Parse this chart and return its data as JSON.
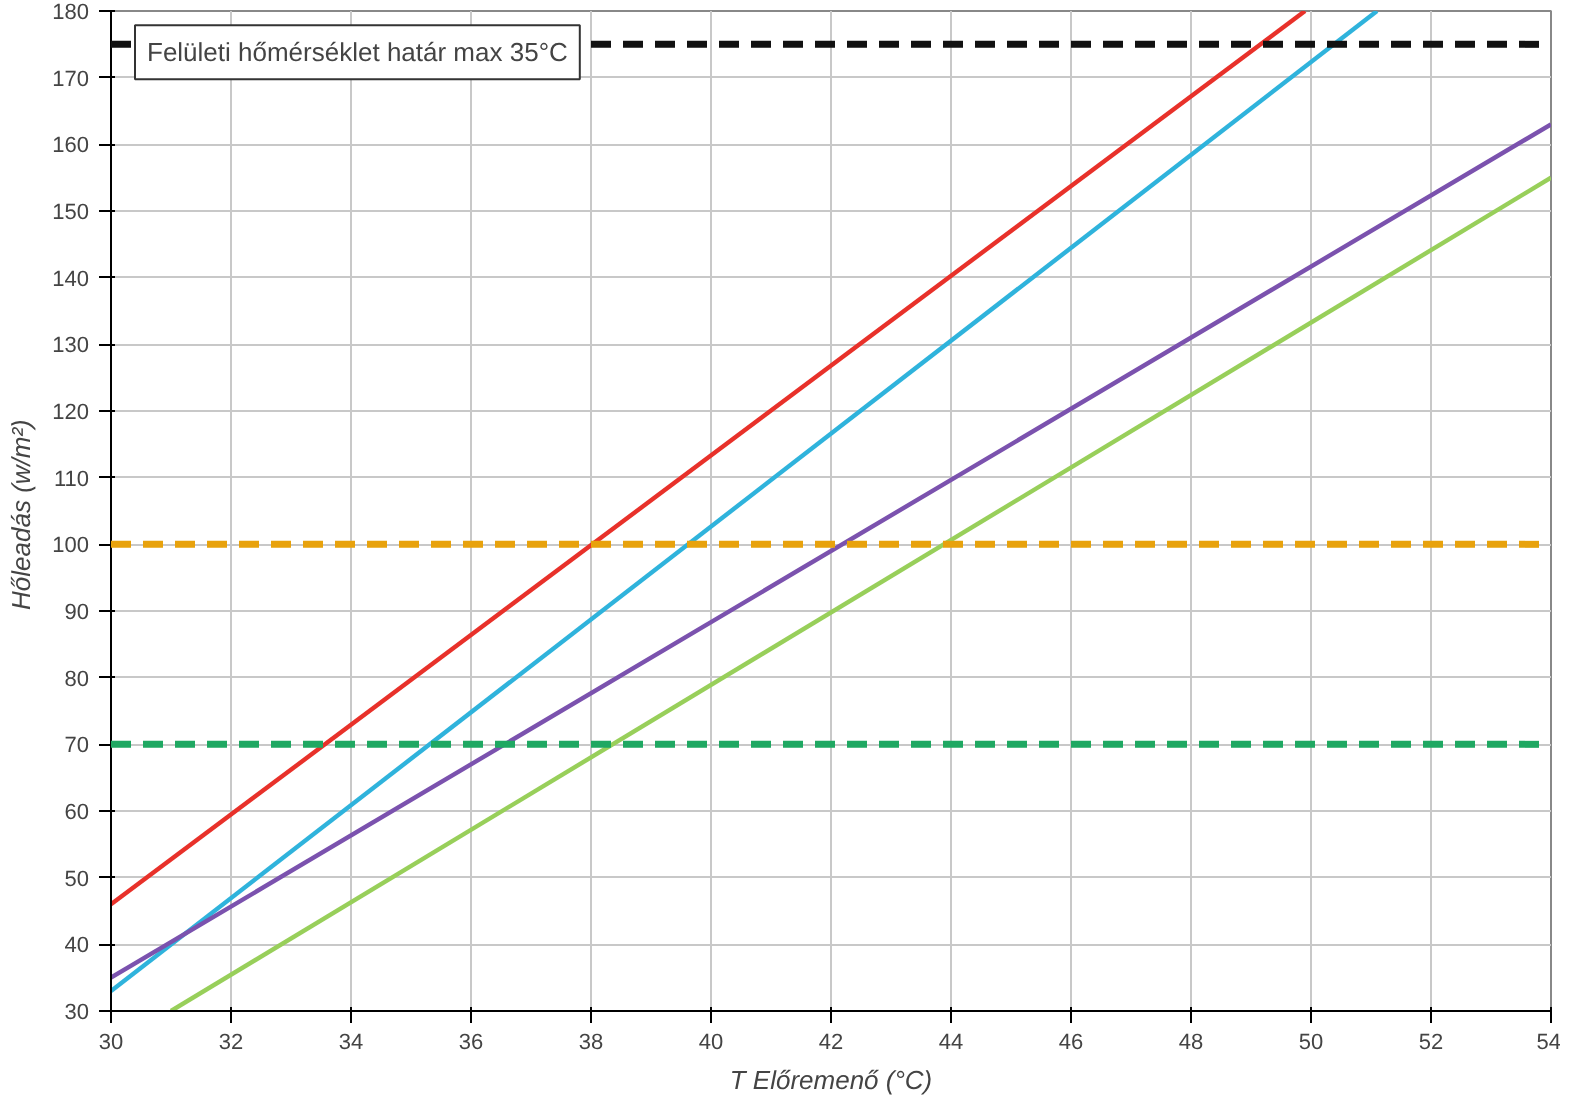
{
  "chart_data": {
    "type": "line",
    "xlabel": "T Előremenő (°C)",
    "ylabel": "Hőleadás  (w/m²)",
    "xlim": [
      30,
      54
    ],
    "ylim": [
      30,
      180
    ],
    "xticks": [
      30,
      32,
      34,
      36,
      38,
      40,
      42,
      44,
      46,
      48,
      50,
      52,
      54
    ],
    "yticks": [
      30,
      40,
      50,
      60,
      70,
      80,
      90,
      100,
      110,
      120,
      130,
      140,
      150,
      160,
      170,
      180
    ],
    "grid": true,
    "line_style": "solid",
    "marker": "none",
    "series": [
      {
        "color": "#e8312a",
        "x": [
          30,
          49.9
        ],
        "values": [
          46,
          180
        ]
      },
      {
        "color": "#2fb3dc",
        "x": [
          30,
          51.1
        ],
        "values": [
          33,
          180
        ]
      },
      {
        "color": "#7b52ae",
        "x": [
          30,
          54
        ],
        "values": [
          35,
          163
        ]
      },
      {
        "color": "#98cf5a",
        "x": [
          31,
          54
        ],
        "values": [
          30,
          155
        ]
      }
    ],
    "ref_lines": [
      {
        "axis": "y",
        "value": 175,
        "label": "Felületi hőmérséklet határ max 35°C",
        "color": "#111111",
        "line_style": "dashed"
      },
      {
        "axis": "y",
        "value": 100,
        "color": "#e8a20c",
        "line_style": "dashed"
      },
      {
        "axis": "y",
        "value": 70,
        "color": "#1fa862",
        "line_style": "dashed"
      }
    ]
  }
}
